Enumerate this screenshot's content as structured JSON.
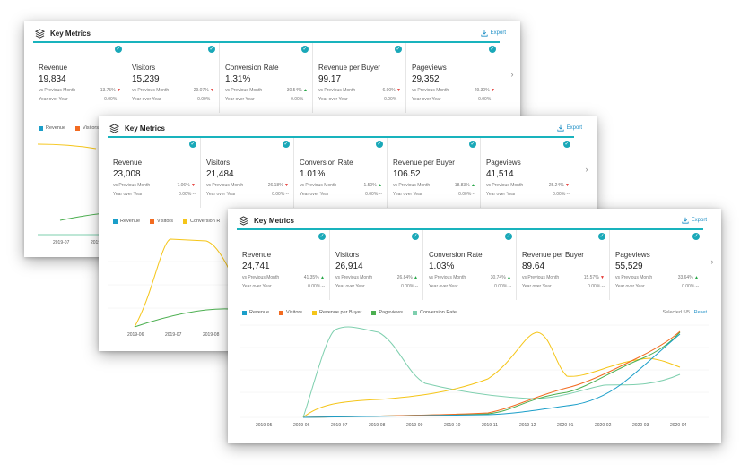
{
  "panels": [
    {
      "title": "Key Metrics",
      "export_label": "Export",
      "cards": [
        {
          "name": "Revenue",
          "value": "19,834",
          "vs_label": "vs Previous Month",
          "vs_value": "13.75%",
          "vs_dir": "down",
          "yoy_label": "Year over Year",
          "yoy_value": "0.00% --"
        },
        {
          "name": "Visitors",
          "value": "15,239",
          "vs_label": "vs Previous Month",
          "vs_value": "29.07%",
          "vs_dir": "down",
          "yoy_label": "Year over Year",
          "yoy_value": "0.00% --"
        },
        {
          "name": "Conversion Rate",
          "value": "1.31%",
          "vs_label": "vs Previous Month",
          "vs_value": "30.54%",
          "vs_dir": "up",
          "yoy_label": "Year over Year",
          "yoy_value": "0.00% --"
        },
        {
          "name": "Revenue per Buyer",
          "value": "99.17",
          "vs_label": "vs Previous Month",
          "vs_value": "6.90%",
          "vs_dir": "down",
          "yoy_label": "Year over Year",
          "yoy_value": "0.00% --"
        },
        {
          "name": "Pageviews",
          "value": "29,352",
          "vs_label": "vs Previous Month",
          "vs_value": "29.30%",
          "vs_dir": "down",
          "yoy_label": "Year over Year",
          "yoy_value": "0.00% --"
        }
      ],
      "legend": [
        "Revenue",
        "Visitors"
      ],
      "x_labels": [
        "2019-07",
        "2019-0"
      ]
    },
    {
      "title": "Key Metrics",
      "export_label": "Export",
      "cards": [
        {
          "name": "Revenue",
          "value": "23,008",
          "vs_label": "vs Previous Month",
          "vs_value": "7.06%",
          "vs_dir": "down",
          "yoy_label": "Year over Year",
          "yoy_value": "0.00% --"
        },
        {
          "name": "Visitors",
          "value": "21,484",
          "vs_label": "vs Previous Month",
          "vs_value": "26.18%",
          "vs_dir": "down",
          "yoy_label": "Year over Year",
          "yoy_value": "0.00% --"
        },
        {
          "name": "Conversion Rate",
          "value": "1.01%",
          "vs_label": "vs Previous Month",
          "vs_value": "1.50%",
          "vs_dir": "up",
          "yoy_label": "Year over Year",
          "yoy_value": "0.00% --"
        },
        {
          "name": "Revenue per Buyer",
          "value": "106.52",
          "vs_label": "vs Previous Month",
          "vs_value": "18.83%",
          "vs_dir": "up",
          "yoy_label": "Year over Year",
          "yoy_value": "0.00% --"
        },
        {
          "name": "Pageviews",
          "value": "41,514",
          "vs_label": "vs Previous Month",
          "vs_value": "25.24%",
          "vs_dir": "down",
          "yoy_label": "Year over Year",
          "yoy_value": "0.00% --"
        }
      ],
      "legend": [
        "Revenue",
        "Visitors",
        "Conversion R"
      ],
      "x_labels": [
        "2019-06",
        "2019-07",
        "2019-08"
      ]
    },
    {
      "title": "Key Metrics",
      "export_label": "Export",
      "cards": [
        {
          "name": "Revenue",
          "value": "24,741",
          "vs_label": "vs Previous Month",
          "vs_value": "41.35%",
          "vs_dir": "up",
          "yoy_label": "Year over Year",
          "yoy_value": "0.00% --"
        },
        {
          "name": "Visitors",
          "value": "26,914",
          "vs_label": "vs Previous Month",
          "vs_value": "26.84%",
          "vs_dir": "up",
          "yoy_label": "Year over Year",
          "yoy_value": "0.00% --"
        },
        {
          "name": "Conversion Rate",
          "value": "1.03%",
          "vs_label": "vs Previous Month",
          "vs_value": "30.74%",
          "vs_dir": "up",
          "yoy_label": "Year over Year",
          "yoy_value": "0.00% --"
        },
        {
          "name": "Revenue per Buyer",
          "value": "89.64",
          "vs_label": "vs Previous Month",
          "vs_value": "15.57%",
          "vs_dir": "down",
          "yoy_label": "Year over Year",
          "yoy_value": "0.00% --"
        },
        {
          "name": "Pageviews",
          "value": "55,529",
          "vs_label": "vs Previous Month",
          "vs_value": "33.64%",
          "vs_dir": "up",
          "yoy_label": "Year over Year",
          "yoy_value": "0.00% --"
        }
      ],
      "legend": [
        "Revenue",
        "Visitors",
        "Revenue per Buyer",
        "Pageviews",
        "Conversion Rate"
      ],
      "selected_label": "Selected",
      "selected_value": "5/5",
      "reset_label": "Reset",
      "x_labels": [
        "2019-05",
        "2019-06",
        "2019-07",
        "2019-08",
        "2019-09",
        "2019-10",
        "2019-11",
        "2019-12",
        "2020-01",
        "2020-02",
        "2020-03",
        "2020-04"
      ]
    }
  ],
  "colors": {
    "accent": "#19b3bd",
    "revenue": "#1a9ec9",
    "visitors": "#f26b21",
    "revenue_per_buyer": "#f5c518",
    "pageviews": "#4caf50",
    "conversion_rate": "#7ecfae",
    "up": "#2aa84a",
    "down": "#e53935",
    "link": "#1e8fc6"
  },
  "icons": {
    "title": "layers-icon",
    "export": "download-icon",
    "check": "check-circle-icon",
    "next": "chevron-right-icon"
  }
}
